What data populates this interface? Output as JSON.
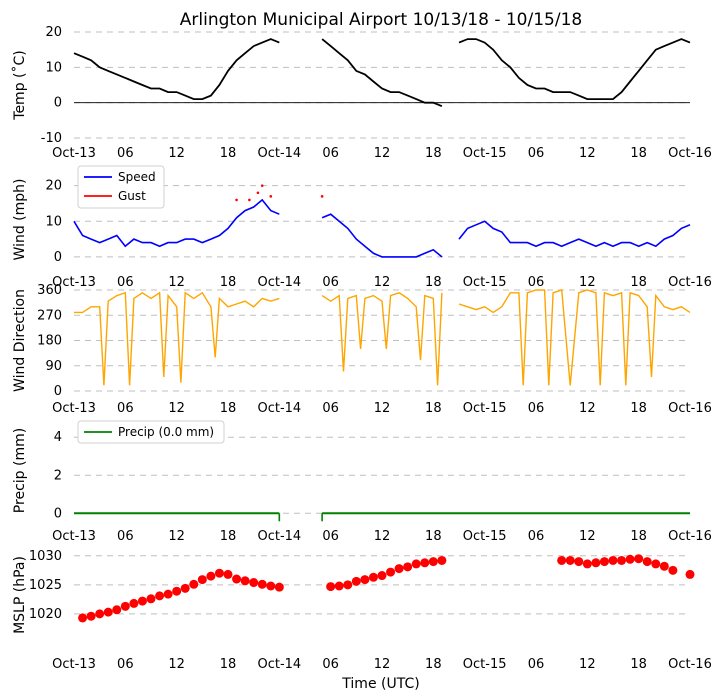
{
  "title": "Arlington Municipal Airport 10/13/18 - 10/15/18",
  "xlabel": "Time (UTC)",
  "x_tick_labels": [
    "Oct-13",
    "06",
    "12",
    "18",
    "Oct-14",
    "06",
    "12",
    "18",
    "Oct-15",
    "06",
    "12",
    "18",
    "Oct-16"
  ],
  "chart_data": [
    {
      "type": "line",
      "name": "temperature",
      "ylabel": "Temp (˚C)",
      "ylim": [
        -10,
        20
      ],
      "yticks": [
        "-10",
        "0",
        "10",
        "20"
      ],
      "color": "#000000",
      "x_unit": "hours since Oct-13 00 UTC",
      "segments": [
        [
          [
            0,
            14
          ],
          [
            1,
            13
          ],
          [
            2,
            12
          ],
          [
            3,
            10
          ],
          [
            4,
            9
          ],
          [
            5,
            8
          ],
          [
            6,
            7
          ],
          [
            7,
            6
          ],
          [
            8,
            5
          ],
          [
            9,
            4
          ],
          [
            10,
            4
          ],
          [
            11,
            3
          ],
          [
            12,
            3
          ],
          [
            13,
            2
          ],
          [
            14,
            1
          ],
          [
            15,
            1
          ],
          [
            16,
            2
          ],
          [
            17,
            5
          ],
          [
            18,
            9
          ],
          [
            19,
            12
          ],
          [
            20,
            14
          ],
          [
            21,
            16
          ],
          [
            22,
            17
          ],
          [
            23,
            18
          ],
          [
            24,
            17
          ]
        ],
        [
          [
            29,
            18
          ],
          [
            30,
            16
          ],
          [
            31,
            14
          ],
          [
            32,
            12
          ],
          [
            33,
            9
          ],
          [
            34,
            8
          ],
          [
            35,
            6
          ],
          [
            36,
            4
          ],
          [
            37,
            3
          ],
          [
            38,
            3
          ],
          [
            39,
            2
          ],
          [
            40,
            1
          ],
          [
            41,
            0
          ],
          [
            42,
            0
          ],
          [
            43,
            -1
          ]
        ],
        [
          [
            45,
            17
          ],
          [
            46,
            18
          ],
          [
            47,
            18
          ],
          [
            48,
            17
          ],
          [
            49,
            15
          ],
          [
            50,
            12
          ],
          [
            51,
            10
          ],
          [
            52,
            7
          ],
          [
            53,
            5
          ],
          [
            54,
            4
          ],
          [
            55,
            4
          ],
          [
            56,
            3
          ],
          [
            57,
            3
          ],
          [
            58,
            3
          ],
          [
            59,
            2
          ],
          [
            60,
            1
          ],
          [
            61,
            1
          ],
          [
            62,
            1
          ],
          [
            63,
            1
          ],
          [
            64,
            3
          ],
          [
            65,
            6
          ],
          [
            66,
            9
          ],
          [
            67,
            12
          ],
          [
            68,
            15
          ],
          [
            69,
            16
          ],
          [
            70,
            17
          ],
          [
            71,
            18
          ],
          [
            72,
            17
          ]
        ]
      ]
    },
    {
      "type": "line",
      "name": "wind",
      "ylabel": "Wind (mph)",
      "ylim": [
        -2,
        23
      ],
      "yticks": [
        "0",
        "10",
        "20"
      ],
      "series": [
        {
          "name": "Speed",
          "color": "#0000ff",
          "segments": [
            [
              [
                0,
                10
              ],
              [
                0.5,
                8
              ],
              [
                1,
                6
              ],
              [
                2,
                5
              ],
              [
                3,
                4
              ],
              [
                4,
                5
              ],
              [
                5,
                6
              ],
              [
                6,
                3
              ],
              [
                7,
                5
              ],
              [
                8,
                4
              ],
              [
                9,
                4
              ],
              [
                10,
                3
              ],
              [
                11,
                4
              ],
              [
                12,
                4
              ],
              [
                13,
                5
              ],
              [
                14,
                5
              ],
              [
                15,
                4
              ],
              [
                16,
                5
              ],
              [
                17,
                6
              ],
              [
                18,
                8
              ],
              [
                19,
                11
              ],
              [
                20,
                13
              ],
              [
                21,
                14
              ],
              [
                22,
                16
              ],
              [
                23,
                13
              ],
              [
                24,
                12
              ]
            ],
            [
              [
                29,
                11
              ],
              [
                30,
                12
              ],
              [
                31,
                10
              ],
              [
                32,
                8
              ],
              [
                33,
                5
              ],
              [
                34,
                3
              ],
              [
                35,
                1
              ],
              [
                36,
                0
              ],
              [
                37,
                0
              ],
              [
                38,
                0
              ],
              [
                39,
                0
              ],
              [
                40,
                0
              ],
              [
                41,
                1
              ],
              [
                42,
                2
              ],
              [
                43,
                0
              ]
            ],
            [
              [
                45,
                5
              ],
              [
                46,
                8
              ],
              [
                47,
                9
              ],
              [
                48,
                10
              ],
              [
                49,
                8
              ],
              [
                50,
                7
              ],
              [
                51,
                4
              ],
              [
                52,
                4
              ],
              [
                53,
                4
              ],
              [
                54,
                3
              ],
              [
                55,
                4
              ],
              [
                56,
                4
              ],
              [
                57,
                3
              ],
              [
                58,
                4
              ],
              [
                59,
                5
              ],
              [
                60,
                4
              ],
              [
                61,
                3
              ],
              [
                62,
                4
              ],
              [
                63,
                3
              ],
              [
                64,
                4
              ],
              [
                65,
                4
              ],
              [
                66,
                3
              ],
              [
                67,
                4
              ],
              [
                68,
                3
              ],
              [
                69,
                5
              ],
              [
                70,
                6
              ],
              [
                71,
                8
              ],
              [
                72,
                9
              ]
            ]
          ]
        },
        {
          "name": "Gust",
          "color": "#ff0000",
          "points": [
            [
              19,
              16
            ],
            [
              20.5,
              16
            ],
            [
              21.5,
              18
            ],
            [
              22,
              20
            ],
            [
              23,
              17
            ],
            [
              29,
              17
            ]
          ]
        }
      ]
    },
    {
      "type": "line",
      "name": "wind_direction",
      "ylabel": "Wind Direction",
      "ylim": [
        0,
        360
      ],
      "yticks": [
        "0",
        "90",
        "180",
        "270",
        "360"
      ],
      "color": "#ffa500",
      "segments": [
        [
          [
            0,
            280
          ],
          [
            1,
            280
          ],
          [
            2,
            300
          ],
          [
            3,
            300
          ],
          [
            3.5,
            20
          ],
          [
            4,
            320
          ],
          [
            5,
            340
          ],
          [
            6,
            350
          ],
          [
            6.5,
            20
          ],
          [
            7,
            330
          ],
          [
            8,
            350
          ],
          [
            9,
            330
          ],
          [
            10,
            350
          ],
          [
            10.5,
            50
          ],
          [
            11,
            340
          ],
          [
            12,
            300
          ],
          [
            12.5,
            30
          ],
          [
            13,
            350
          ],
          [
            14,
            330
          ],
          [
            15,
            350
          ],
          [
            16,
            300
          ],
          [
            16.5,
            120
          ],
          [
            17,
            330
          ],
          [
            18,
            300
          ],
          [
            19,
            310
          ],
          [
            20,
            320
          ],
          [
            21,
            300
          ],
          [
            22,
            330
          ],
          [
            23,
            320
          ],
          [
            24,
            330
          ]
        ],
        [
          [
            29,
            340
          ],
          [
            30,
            320
          ],
          [
            31,
            340
          ],
          [
            31.5,
            70
          ],
          [
            32,
            330
          ],
          [
            33,
            340
          ],
          [
            33.5,
            150
          ],
          [
            34,
            330
          ],
          [
            35,
            340
          ],
          [
            36,
            320
          ],
          [
            36.5,
            150
          ],
          [
            37,
            340
          ],
          [
            38,
            350
          ],
          [
            39,
            330
          ],
          [
            40,
            300
          ],
          [
            40.5,
            110
          ],
          [
            41,
            340
          ],
          [
            42,
            330
          ],
          [
            42.5,
            20
          ],
          [
            43,
            350
          ]
        ],
        [
          [
            45,
            310
          ],
          [
            46,
            300
          ],
          [
            47,
            290
          ],
          [
            48,
            300
          ],
          [
            49,
            280
          ],
          [
            50,
            300
          ],
          [
            51,
            350
          ],
          [
            52,
            350
          ],
          [
            52.5,
            20
          ],
          [
            53,
            350
          ],
          [
            54,
            360
          ],
          [
            55,
            360
          ],
          [
            55.5,
            20
          ],
          [
            56,
            350
          ],
          [
            57,
            360
          ],
          [
            58,
            20
          ],
          [
            59,
            350
          ],
          [
            60,
            360
          ],
          [
            61,
            350
          ],
          [
            61.5,
            20
          ],
          [
            62,
            350
          ],
          [
            63,
            340
          ],
          [
            64,
            350
          ],
          [
            64.5,
            20
          ],
          [
            65,
            350
          ],
          [
            66,
            340
          ],
          [
            67,
            300
          ],
          [
            67.5,
            50
          ],
          [
            68,
            340
          ],
          [
            69,
            300
          ],
          [
            70,
            290
          ],
          [
            71,
            300
          ],
          [
            72,
            280
          ]
        ]
      ]
    },
    {
      "type": "line",
      "name": "precip",
      "ylabel": "Precip (mm)",
      "ylim": [
        -0.3,
        4.8
      ],
      "yticks": [
        "0",
        "2",
        "4"
      ],
      "color": "#008000",
      "legend": "Precip (0.0 mm)",
      "segments": [
        [
          [
            0,
            0
          ],
          [
            24,
            0
          ]
        ],
        [
          [
            29,
            0
          ],
          [
            72,
            0
          ]
        ]
      ]
    },
    {
      "type": "scatter",
      "name": "mslp",
      "ylabel": "MSLP (hPa)",
      "ylim": [
        1015.5,
        1031
      ],
      "yticks": [
        "1020",
        "1025",
        "1030"
      ],
      "color": "#ff0000",
      "x": [
        1,
        2,
        3,
        4,
        5,
        6,
        7,
        8,
        9,
        10,
        11,
        12,
        13,
        14,
        15,
        16,
        17,
        18,
        19,
        20,
        21,
        22,
        23,
        24,
        30,
        31,
        32,
        33,
        34,
        35,
        36,
        37,
        38,
        39,
        40,
        41,
        42,
        43,
        57,
        58,
        59,
        60,
        61,
        62,
        63,
        64,
        65,
        66,
        67,
        68,
        69,
        70,
        72
      ],
      "y": [
        1019.3,
        1019.6,
        1020,
        1020.3,
        1020.7,
        1021.3,
        1021.8,
        1022.2,
        1022.6,
        1023.1,
        1023.4,
        1023.9,
        1024.4,
        1025.1,
        1025.9,
        1026.5,
        1027,
        1026.8,
        1026,
        1025.7,
        1025.4,
        1025.1,
        1024.8,
        1024.6,
        1024.7,
        1024.8,
        1025,
        1025.6,
        1025.9,
        1026.3,
        1026.6,
        1027.2,
        1027.8,
        1028.1,
        1028.6,
        1028.8,
        1029,
        1029.2,
        1029.2,
        1029.2,
        1029,
        1028.6,
        1028.8,
        1029,
        1029.2,
        1029.2,
        1029.4,
        1029.5,
        1029,
        1028.6,
        1028.2,
        1027.5,
        1026.8
      ]
    }
  ]
}
